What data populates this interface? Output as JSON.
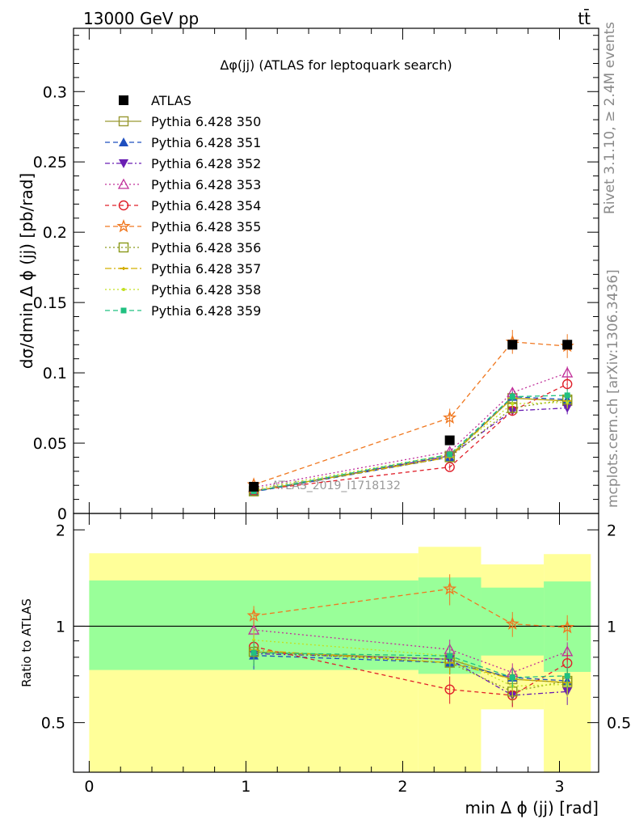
{
  "header": {
    "energy_label": "13000 GeV pp",
    "process_label": "tt̄"
  },
  "side_labels": {
    "rivet": "Rivet 3.1.10, ≥ 2.4M events",
    "mcplots": "mcplots.cern.ch [arXiv:1306.3436]"
  },
  "chart_data": {
    "type": "scatter",
    "title": "Δφ(jj) (ATLAS for leptoquark search)",
    "watermark": "ATLAS_2019_I1718132",
    "xlabel": "min Δ ϕ (jj) [rad]",
    "ylabel": "dσ/dmin Δ ϕ (jj) [pb/rad]",
    "ratio_ylabel": "Ratio to ATLAS",
    "xlim": [
      -0.1,
      3.25
    ],
    "ylim": [
      0,
      0.345
    ],
    "ratio_ylim": [
      0.35,
      2.25
    ],
    "x_ticks": [
      "0",
      "1",
      "2",
      "3"
    ],
    "y_ticks": [
      "0",
      "0.05",
      "0.1",
      "0.15",
      "0.2",
      "0.25",
      "0.3"
    ],
    "ratio_ticks": [
      "0.5",
      "1",
      "2"
    ],
    "x": [
      1.05,
      2.3,
      2.7,
      3.05
    ],
    "bins": [
      [
        0,
        2.1
      ],
      [
        2.1,
        2.5
      ],
      [
        2.5,
        2.9
      ],
      [
        2.9,
        3.2
      ]
    ],
    "data": {
      "name": "ATLAS",
      "color": "#000000",
      "values": [
        0.019,
        0.052,
        0.12,
        0.12
      ]
    },
    "bands": {
      "inner": {
        "color": "#99ff99",
        "lo": [
          0.73,
          0.71,
          0.81,
          0.72
        ],
        "hi": [
          1.39,
          1.42,
          1.32,
          1.38
        ]
      },
      "outer": {
        "color": "#ffff99",
        "lo": [
          0.35,
          0.35,
          0.55,
          0.35
        ],
        "hi": [
          1.69,
          1.77,
          1.56,
          1.68
        ]
      }
    },
    "series": [
      {
        "name": "Pythia 6.428 350",
        "color": "#999933",
        "marker": "square-open",
        "dash": "",
        "values": [
          0.0158,
          0.041,
          0.082,
          0.08
        ],
        "err": [
          0.0011,
          0.0022,
          0.0035,
          0.0045
        ]
      },
      {
        "name": "Pythia 6.428 351",
        "color": "#1f4fbf",
        "marker": "triangle-up",
        "dash": "6,4",
        "values": [
          0.0154,
          0.04,
          0.083,
          0.081
        ],
        "err": [
          0.0011,
          0.0022,
          0.0035,
          0.0045
        ]
      },
      {
        "name": "Pythia 6.428 352",
        "color": "#6a1fb3",
        "marker": "triangle-down",
        "dash": "6,3,2,3",
        "values": [
          0.0156,
          0.041,
          0.073,
          0.075
        ],
        "err": [
          0.0011,
          0.0022,
          0.0035,
          0.0045
        ]
      },
      {
        "name": "Pythia 6.428 353",
        "color": "#c0309a",
        "marker": "triangle-up-open",
        "dash": "2,3",
        "values": [
          0.0185,
          0.044,
          0.086,
          0.1
        ],
        "err": [
          0.0011,
          0.0022,
          0.0035,
          0.0045
        ]
      },
      {
        "name": "Pythia 6.428 354",
        "color": "#e0202a",
        "marker": "circle-open",
        "dash": "5,4",
        "values": [
          0.0164,
          0.033,
          0.073,
          0.092
        ],
        "err": [
          0.0011,
          0.0022,
          0.0035,
          0.0045
        ]
      },
      {
        "name": "Pythia 6.428 355",
        "color": "#f07820",
        "marker": "star-open",
        "dash": "6,4",
        "values": [
          0.0205,
          0.068,
          0.122,
          0.119
        ],
        "err": [
          0.0011,
          0.0065,
          0.0085,
          0.0085
        ]
      },
      {
        "name": "Pythia 6.428 356",
        "color": "#8a9a1a",
        "marker": "square-open",
        "dash": "2,3",
        "values": [
          0.0158,
          0.04,
          0.075,
          0.081
        ],
        "err": [
          0.0011,
          0.0022,
          0.0035,
          0.0045
        ]
      },
      {
        "name": "Pythia 6.428 357",
        "color": "#d4b000",
        "marker": "dash-point",
        "dash": "8,3,2,3",
        "values": [
          0.016,
          0.04,
          0.082,
          0.08
        ],
        "err": [
          0.0011,
          0.0022,
          0.0035,
          0.0045
        ]
      },
      {
        "name": "Pythia 6.428 358",
        "color": "#c2e020",
        "marker": "dot",
        "dash": "2,3",
        "values": [
          0.0172,
          0.042,
          0.078,
          0.079
        ],
        "err": [
          0.0011,
          0.0022,
          0.0035,
          0.0045
        ]
      },
      {
        "name": "Pythia 6.428 359",
        "color": "#20c080",
        "marker": "square",
        "dash": "6,4",
        "values": [
          0.0157,
          0.042,
          0.083,
          0.084
        ],
        "err": [
          0.0011,
          0.0022,
          0.0035,
          0.0045
        ]
      }
    ],
    "grid": false,
    "legend_position": "top-left"
  }
}
